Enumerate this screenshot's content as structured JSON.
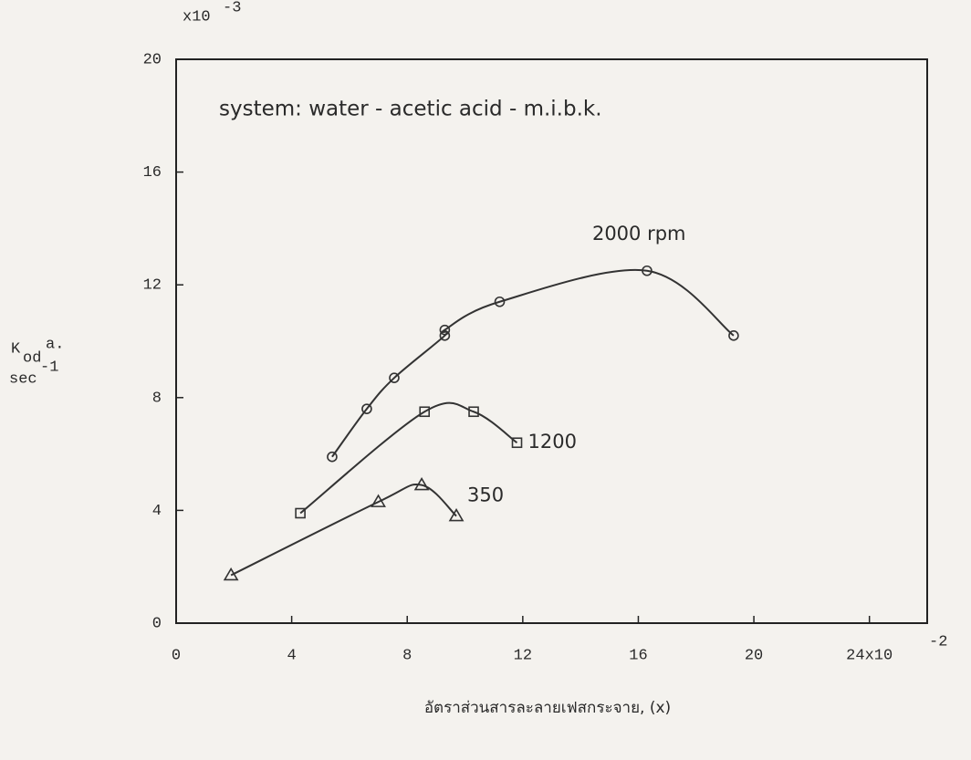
{
  "chart_data": {
    "type": "line",
    "title": "system:  water - acetic acid - m.i.b.k.",
    "y_label": {
      "main": "K",
      "sub": "od",
      "tail": "a.",
      "unit": "sec",
      "unit_exp": "-1"
    },
    "y_multiplier": {
      "base": "x10",
      "exp": "-3"
    },
    "x_label": "อัตราส่วนสารละลายเฟสกระจาย, (x)",
    "x_exponent": "-2",
    "xlim": [
      0,
      26
    ],
    "ylim": [
      0,
      20
    ],
    "xticks": [
      0,
      4,
      8,
      12,
      16,
      20,
      {
        "value": 24,
        "label": "24x10"
      }
    ],
    "yticks": [
      0,
      4,
      8,
      12,
      16,
      20
    ],
    "series": [
      {
        "name": "2000 rpm",
        "color": "#333",
        "marker": "circle",
        "x": [
          5.4,
          6.6,
          7.55,
          9.3,
          9.3,
          11.2,
          16.3,
          19.3
        ],
        "values": [
          5.9,
          7.6,
          8.7,
          10.2,
          10.4,
          11.4,
          12.5,
          10.2
        ]
      },
      {
        "name": "1200",
        "color": "#333",
        "marker": "square",
        "x": [
          4.3,
          8.6,
          10.3,
          11.8
        ],
        "values": [
          3.9,
          7.5,
          7.5,
          6.4
        ]
      },
      {
        "name": "350",
        "color": "#333",
        "marker": "triangle",
        "x": [
          1.9,
          7.0,
          8.5,
          9.7
        ],
        "values": [
          1.7,
          4.3,
          4.9,
          3.8
        ]
      }
    ]
  }
}
